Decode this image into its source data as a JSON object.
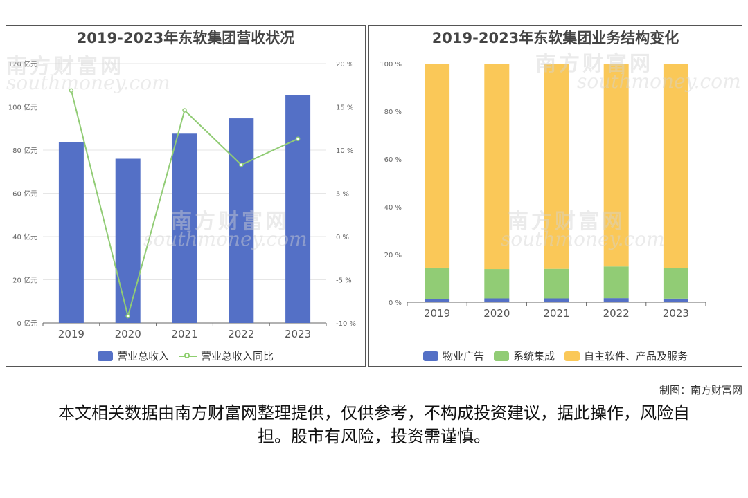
{
  "chart_data": [
    {
      "type": "bar",
      "title": "2019-2023年东软集团营收状况",
      "categories": [
        "2019",
        "2020",
        "2021",
        "2022",
        "2023"
      ],
      "series": [
        {
          "name": "营业总收入",
          "values": [
            83.7,
            76.0,
            87.6,
            94.7,
            105.4
          ],
          "color": "#5470c6"
        },
        {
          "name": "营业总收入同比",
          "type": "line",
          "axis": "right",
          "values": [
            16.9,
            -9.2,
            14.6,
            8.3,
            11.3
          ],
          "color": "#91cc75"
        }
      ],
      "y_left": {
        "ticks": [
          "0 亿元",
          "20 亿元",
          "40 亿元",
          "60 亿元",
          "80 亿元",
          "100 亿元",
          "120 亿元"
        ],
        "ylim": [
          0,
          120
        ]
      },
      "y_right": {
        "ticks": [
          "-10 %",
          "-5 %",
          "0 %",
          "5 %",
          "10 %",
          "15 %",
          "20 %"
        ],
        "ylim": [
          -10,
          20
        ]
      },
      "legend_position": "bottom-center",
      "grid": true
    },
    {
      "type": "bar",
      "stacked": true,
      "title": "2019-2023年东软集团业务结构变化",
      "categories": [
        "2019",
        "2020",
        "2021",
        "2022",
        "2023"
      ],
      "series": [
        {
          "name": "物业广告",
          "values": [
            1.2,
            1.6,
            1.6,
            1.7,
            1.5
          ],
          "color": "#5470c6"
        },
        {
          "name": "系统集成",
          "values": [
            13.3,
            12.3,
            12.4,
            13.3,
            12.9
          ],
          "color": "#91cc75"
        },
        {
          "name": "自主软件、产品及服务",
          "values": [
            85.5,
            86.1,
            86.0,
            85.0,
            85.6
          ],
          "color": "#fac858"
        }
      ],
      "y_left": {
        "ticks": [
          "0 %",
          "20 %",
          "40 %",
          "60 %",
          "80 %",
          "100 %"
        ],
        "ylim": [
          0,
          100
        ]
      },
      "legend_position": "bottom-center",
      "grid": false
    }
  ],
  "watermark": {
    "brand": "南方财富网",
    "site": "southmoney.com"
  },
  "credit": "制图：南方财富网",
  "disclaimer": "本文相关数据由南方财富网整理提供，仅供参考，不构成投资建议，据此操作，风险自担。股市有风险，投资需谨慎。"
}
